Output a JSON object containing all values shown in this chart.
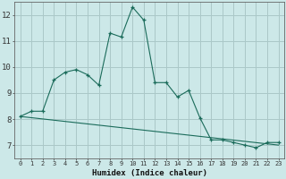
{
  "title": "",
  "xlabel": "Humidex (Indice chaleur)",
  "bg_color": "#cce8e8",
  "grid_color": "#aac8c8",
  "line_color": "#1a6b5a",
  "xlim": [
    -0.5,
    23.5
  ],
  "ylim": [
    6.5,
    12.5
  ],
  "yticks": [
    7,
    8,
    9,
    10,
    11,
    12
  ],
  "xticks": [
    0,
    1,
    2,
    3,
    4,
    5,
    6,
    7,
    8,
    9,
    10,
    11,
    12,
    13,
    14,
    15,
    16,
    17,
    18,
    19,
    20,
    21,
    22,
    23
  ],
  "line1_x": [
    0,
    1,
    2,
    3,
    4,
    5,
    6,
    7,
    8,
    9,
    10,
    11,
    12,
    13,
    14,
    15,
    16,
    17,
    18,
    19,
    20,
    21,
    22,
    23
  ],
  "line1_y": [
    8.1,
    8.3,
    8.3,
    9.5,
    9.8,
    9.9,
    9.7,
    9.3,
    11.3,
    11.15,
    12.3,
    11.8,
    9.4,
    9.4,
    8.85,
    9.1,
    8.05,
    7.2,
    7.2,
    7.1,
    7.0,
    6.9,
    7.1,
    7.1
  ],
  "line2_x": [
    0,
    23
  ],
  "line2_y": [
    8.1,
    7.0
  ]
}
